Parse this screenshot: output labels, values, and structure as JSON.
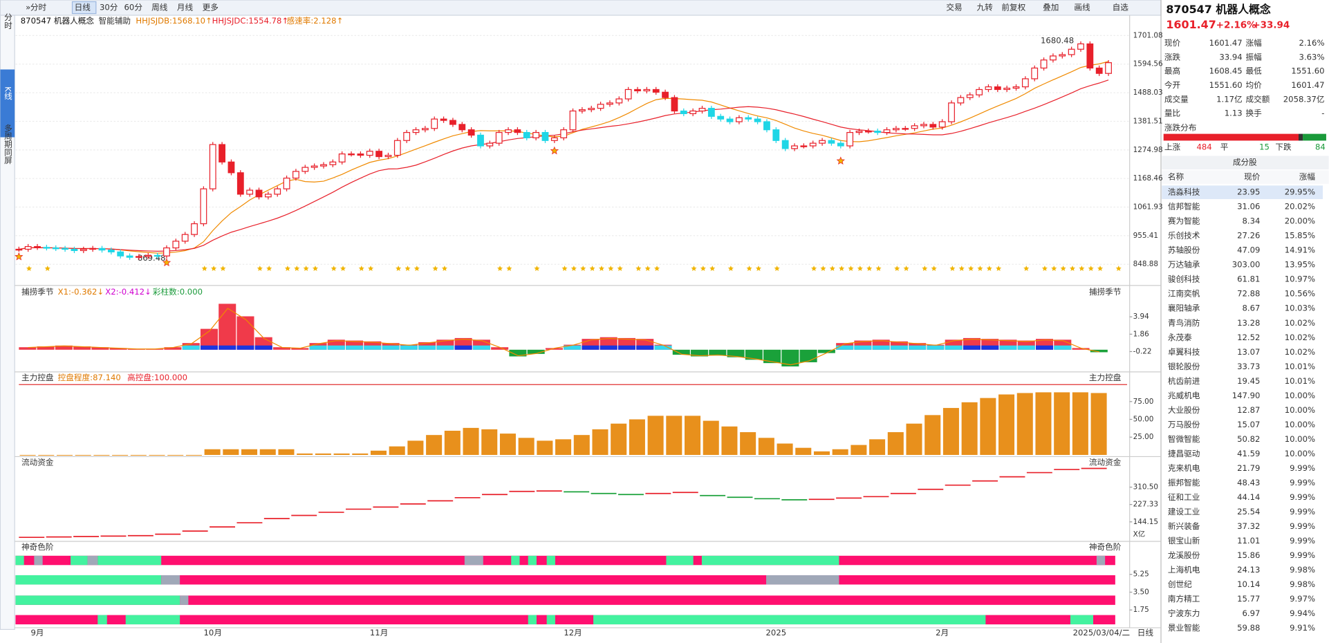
{
  "toolbar": {
    "left": [
      "分时",
      "日线",
      "30分",
      "60分",
      "周线",
      "月线",
      "更多"
    ],
    "right": [
      "交易",
      "九转",
      "前复权",
      "叠加",
      "画线",
      "自选"
    ]
  },
  "side_tabs": [
    "分时",
    "K线",
    "多周期同屏"
  ],
  "main": {
    "title": "870547 机器人概念",
    "assist": "智能辅助",
    "indicators": [
      "HHJSJDB:1568.10↑",
      "HHJSJDC:1554.78↑",
      "感速率:2.128↑"
    ],
    "high_label": "1680.48",
    "low_label": "869.48",
    "ylim": [
      792,
      1723
    ],
    "yticks": [
      {
        "value": 1701.08,
        "label": "1701.08"
      },
      1594.56,
      1488.03,
      1381.51,
      1274.98,
      1168.46,
      1061.93,
      955.41,
      848.88
    ],
    "close": [
      905,
      915,
      912,
      910,
      908,
      905,
      900,
      905,
      908,
      902,
      895,
      880,
      875,
      878,
      882,
      880,
      910,
      935,
      960,
      1000,
      1130,
      1295,
      1230,
      1190,
      1110,
      1125,
      1100,
      1110,
      1130,
      1170,
      1195,
      1210,
      1215,
      1220,
      1230,
      1260,
      1260,
      1255,
      1270,
      1250,
      1255,
      1310,
      1340,
      1350,
      1355,
      1390,
      1385,
      1370,
      1350,
      1330,
      1290,
      1300,
      1340,
      1350,
      1340,
      1320,
      1340,
      1310,
      1320,
      1350,
      1420,
      1425,
      1430,
      1445,
      1450,
      1465,
      1500,
      1495,
      1500,
      1490,
      1470,
      1420,
      1410,
      1420,
      1430,
      1400,
      1390,
      1380,
      1395,
      1390,
      1380,
      1350,
      1310,
      1280,
      1290,
      1290,
      1300,
      1310,
      1300,
      1290,
      1340,
      1345,
      1345,
      1340,
      1350,
      1355,
      1355,
      1365,
      1370,
      1360,
      1380,
      1450,
      1470,
      1480,
      1500,
      1510,
      1500,
      1505,
      1510,
      1540,
      1580,
      1610,
      1625,
      1630,
      1650,
      1670,
      1580,
      1560,
      1600
    ],
    "x_labels": [
      "9月",
      "10月",
      "11月",
      "12月",
      "2025",
      "2月"
    ],
    "date": "2025/03/04/二",
    "period": "日线"
  },
  "season": {
    "title": "捕捞季节",
    "labels": [
      "X1:-0.362↓",
      "X2:-0.412↓",
      "彩柱数:0.000"
    ],
    "ylim": [
      -2.25,
      6.27
    ],
    "yticks": [
      3.94,
      1.86,
      -0.22
    ],
    "values": [
      0.3,
      0.4,
      0.5,
      0.4,
      0.3,
      0.2,
      0.1,
      0.1,
      0.3,
      0.8,
      2.5,
      5.5,
      4,
      1.5,
      0.3,
      0.2,
      0.8,
      1.2,
      1.1,
      1,
      0.8,
      0.6,
      0.9,
      1.2,
      1.4,
      1.2,
      0.3,
      -0.8,
      -0.5,
      0.2,
      0.6,
      1.3,
      1.5,
      1.4,
      1.3,
      0.6,
      -0.6,
      -0.8,
      -0.7,
      -0.9,
      -1.2,
      -1.6,
      -2,
      -1.5,
      -0.4,
      0.8,
      1.1,
      1.2,
      1.0,
      0.8,
      0.6,
      1.2,
      1.4,
      1.3,
      1.2,
      1.1,
      1.3,
      1.2,
      0.2,
      -0.3
    ]
  },
  "control": {
    "title": "主力控盘",
    "labels": [
      "控盘程度:87.140",
      "高控盘:100.000"
    ],
    "ylim": [
      0,
      101.2
    ],
    "yticks": [
      {
        "value": 75,
        "label": "75.00"
      },
      {
        "value": 50,
        "label": "50.00"
      },
      {
        "value": 25,
        "label": "25.00"
      }
    ],
    "values": [
      0,
      0,
      0,
      0,
      0,
      0,
      0,
      0,
      0,
      0,
      8,
      8,
      8,
      8,
      8,
      2,
      2,
      2,
      2,
      6,
      12,
      20,
      28,
      34,
      38,
      36,
      30,
      24,
      20,
      22,
      28,
      36,
      44,
      50,
      55,
      55,
      55,
      48,
      40,
      32,
      24,
      16,
      10,
      5,
      8,
      14,
      22,
      32,
      44,
      56,
      66,
      74,
      80,
      85,
      87,
      88,
      88,
      88,
      87
    ]
  },
  "fund": {
    "title": "流动资金",
    "unit": "X亿",
    "ylim": [
      59,
      412
    ],
    "yticks": [
      {
        "value": 310.5,
        "label": "310.50"
      },
      227.33,
      144.15
    ],
    "values": [
      70,
      72,
      74,
      76,
      78,
      85,
      100,
      120,
      140,
      160,
      175,
      190,
      205,
      215,
      230,
      245,
      260,
      275,
      290,
      292,
      288,
      280,
      275,
      280,
      285,
      270,
      262,
      255,
      250,
      252,
      258,
      265,
      280,
      300,
      320,
      340,
      360,
      380,
      395,
      400
    ]
  },
  "color_scale": {
    "title": "神奇色阶",
    "yticks": [
      5.25,
      {
        "value": 3.5,
        "label": "3.50"
      },
      1.75
    ]
  },
  "quote": {
    "title": "870547 机器人概念",
    "price": "1601.47",
    "pct": "+2.16%",
    "chg": "+33.94",
    "rows": [
      [
        "现价",
        "1601.47",
        "涨幅",
        "2.16%"
      ],
      [
        "涨跌",
        "33.94",
        "振幅",
        "3.63%"
      ],
      [
        "最高",
        "1608.45",
        "最低",
        "1551.60"
      ],
      [
        "今开",
        "1551.60",
        "均价",
        "1601.47"
      ],
      [
        "成交量",
        "1.17亿",
        "成交额",
        "2058.37亿"
      ],
      [
        "量比",
        "1.13",
        "换手",
        "-"
      ]
    ],
    "dist_title": "涨跌分布",
    "up_label": "上涨",
    "up": 484,
    "flat_label": "平",
    "flat": 15,
    "down_label": "下跌",
    "down": 84
  },
  "stocks": {
    "title": "成分股",
    "headers": [
      "名称",
      "现价",
      "涨幅"
    ],
    "rows": [
      [
        "浩淼科技",
        "23.95",
        "29.95%"
      ],
      [
        "信邦智能",
        "31.06",
        "20.02%"
      ],
      [
        "赛为智能",
        "8.34",
        "20.00%"
      ],
      [
        "乐创技术",
        "27.26",
        "15.85%"
      ],
      [
        "苏轴股份",
        "47.09",
        "14.91%"
      ],
      [
        "万达轴承",
        "303.00",
        "13.95%"
      ],
      [
        "骏创科技",
        "61.81",
        "10.97%"
      ],
      [
        "江南奕帆",
        "72.88",
        "10.56%"
      ],
      [
        "襄阳轴承",
        "8.67",
        "10.03%"
      ],
      [
        "青鸟消防",
        "13.28",
        "10.02%"
      ],
      [
        "永茂泰",
        "12.52",
        "10.02%"
      ],
      [
        "卓翼科技",
        "13.07",
        "10.02%"
      ],
      [
        "银轮股份",
        "33.73",
        "10.01%"
      ],
      [
        "杭齿前进",
        "19.45",
        "10.01%"
      ],
      [
        "兆威机电",
        "147.90",
        "10.00%"
      ],
      [
        "大业股份",
        "12.87",
        "10.00%"
      ],
      [
        "万马股份",
        "15.07",
        "10.00%"
      ],
      [
        "智微智能",
        "50.82",
        "10.00%"
      ],
      [
        "捷昌驱动",
        "41.59",
        "10.00%"
      ],
      [
        "克来机电",
        "21.79",
        "9.99%"
      ],
      [
        "振邦智能",
        "48.43",
        "9.99%"
      ],
      [
        "征和工业",
        "44.14",
        "9.99%"
      ],
      [
        "建设工业",
        "25.54",
        "9.99%"
      ],
      [
        "新兴装备",
        "37.32",
        "9.99%"
      ],
      [
        "银宝山新",
        "11.01",
        "9.99%"
      ],
      [
        "龙溪股份",
        "15.86",
        "9.99%"
      ],
      [
        "上海机电",
        "24.13",
        "9.98%"
      ],
      [
        "创世纪",
        "10.14",
        "9.98%"
      ],
      [
        "南方精工",
        "15.77",
        "9.97%"
      ],
      [
        "宁波东力",
        "6.97",
        "9.94%"
      ],
      [
        "景业智能",
        "59.88",
        "9.91%"
      ]
    ]
  }
}
